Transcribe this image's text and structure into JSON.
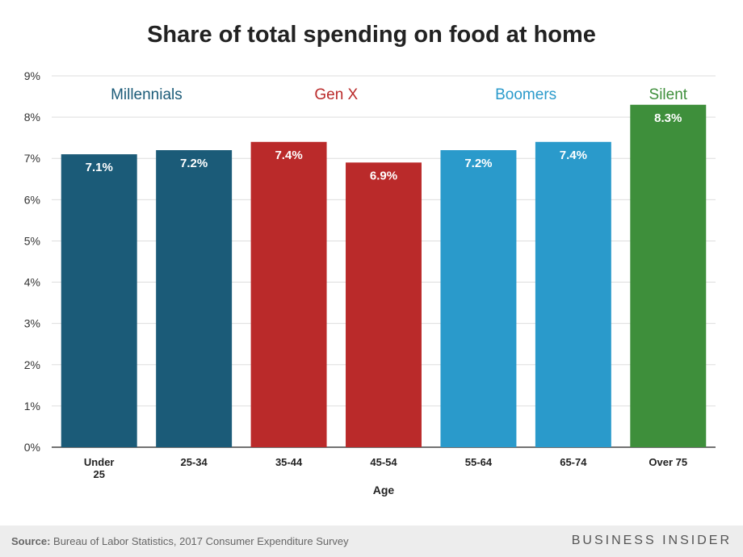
{
  "chart_data": {
    "type": "bar",
    "title": "Share of total spending on food at home",
    "xlabel": "Age",
    "ylabel": "",
    "categories": [
      [
        "Under",
        "25"
      ],
      [
        "25-34"
      ],
      [
        "35-44"
      ],
      [
        "45-54"
      ],
      [
        "55-64"
      ],
      [
        "65-74"
      ],
      [
        "Over 75"
      ]
    ],
    "values": [
      7.1,
      7.2,
      7.4,
      6.9,
      7.2,
      7.4,
      8.3
    ],
    "value_labels": [
      "7.1%",
      "7.2%",
      "7.4%",
      "6.9%",
      "7.2%",
      "7.4%",
      "8.3%"
    ],
    "bar_groups": [
      0,
      0,
      1,
      1,
      2,
      2,
      3
    ],
    "groups": [
      {
        "name": "Millennials",
        "color": "#1b5b78"
      },
      {
        "name": "Gen X",
        "color": "#ba2a2a"
      },
      {
        "name": "Boomers",
        "color": "#2a9acb"
      },
      {
        "name": "Silent",
        "color": "#3e8f3b"
      }
    ],
    "yticks": [
      "0%",
      "1%",
      "2%",
      "3%",
      "4%",
      "5%",
      "6%",
      "7%",
      "8%",
      "9%"
    ],
    "ylim": [
      0,
      9
    ],
    "grid": true
  },
  "footer": {
    "source_label": "Source:",
    "source_text": " Bureau of Labor Statistics, 2017 Consumer Expenditure Survey",
    "brand": "BUSINESS INSIDER"
  }
}
